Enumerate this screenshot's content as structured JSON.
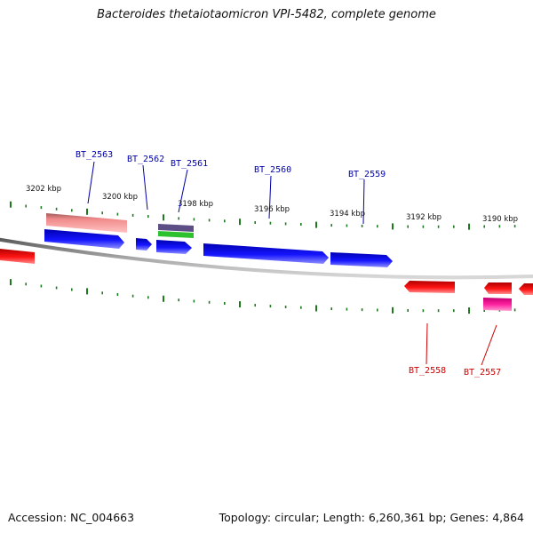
{
  "title": "Bacteroides thetaiotaomicron VPI-5482, complete genome",
  "footer": {
    "accession": "Accession: NC_004663",
    "summary": "Topology: circular; Length: 6,260,361 bp; Genes: 4,864"
  },
  "colors": {
    "backbone": "#8a8a8a",
    "tick": "#1e7a1e",
    "forward_gene": "#1010ee",
    "reverse_gene": "#ee1010",
    "forward_label": "#0000aa",
    "reverse_label": "#cc0000",
    "rna_feature": "#f08080",
    "other_feature": "#ee1090",
    "green_feature": "#22bb22",
    "grey_feature": "#6a5a8a"
  },
  "ticks": [
    {
      "label": "3202 kbp"
    },
    {
      "label": "3200 kbp"
    },
    {
      "label": "3198 kbp"
    },
    {
      "label": "3196 kbp"
    },
    {
      "label": "3194 kbp"
    },
    {
      "label": "3192 kbp"
    },
    {
      "label": "3190 kbp"
    }
  ],
  "gene_labels": [
    {
      "name": "BT_2563",
      "strand": "forward"
    },
    {
      "name": "BT_2562",
      "strand": "forward"
    },
    {
      "name": "BT_2561",
      "strand": "forward"
    },
    {
      "name": "BT_2560",
      "strand": "forward"
    },
    {
      "name": "BT_2559",
      "strand": "forward"
    },
    {
      "name": "BT_2558",
      "strand": "reverse"
    },
    {
      "name": "BT_2557",
      "strand": "reverse"
    }
  ]
}
